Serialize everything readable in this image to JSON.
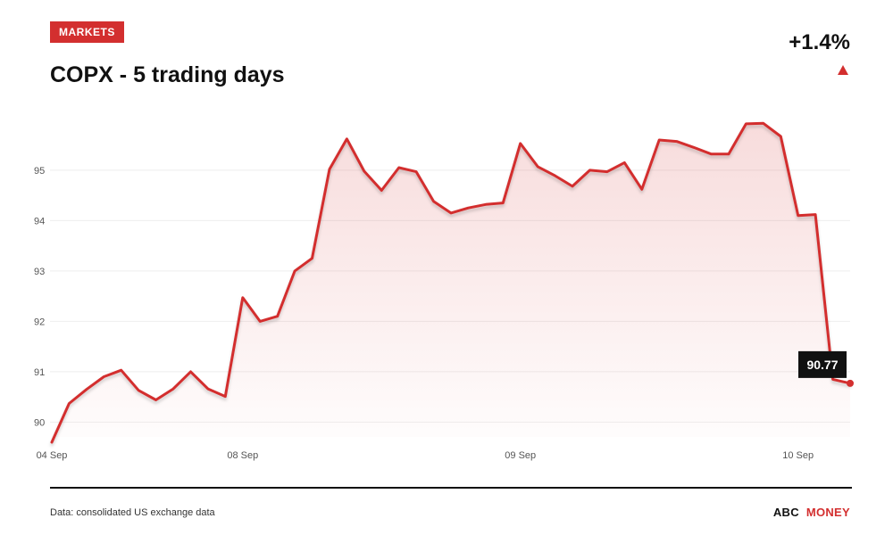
{
  "header": {
    "badge": "MARKETS",
    "title": "COPX - 5 trading days",
    "change": "+1.4%"
  },
  "colors": {
    "accent": "#d32f2f",
    "text": "#111111",
    "grid": "#eeeeee"
  },
  "icons": {
    "trend": "triangle-up-icon"
  },
  "chart_data": {
    "type": "area",
    "title": "COPX - 5 trading days",
    "xlabel": "",
    "ylabel": "",
    "ylim": [
      89.6,
      95.9
    ],
    "yticks": [
      90,
      91,
      92,
      93,
      94,
      95
    ],
    "xtick_labels": [
      {
        "label": "04 Sep",
        "index": 0
      },
      {
        "label": "08 Sep",
        "index": 11
      },
      {
        "label": "09 Sep",
        "index": 27
      },
      {
        "label": "10 Sep",
        "index": 43
      }
    ],
    "grid": true,
    "series": [
      {
        "values": [
          89.6,
          90.37,
          90.65,
          90.9,
          91.03,
          90.63,
          90.44,
          90.66,
          91.0,
          90.66,
          90.51,
          92.47,
          92.0,
          92.1,
          93.0,
          93.25,
          95.02,
          95.62,
          94.98,
          94.6,
          95.05,
          94.97,
          94.38,
          94.15,
          94.25,
          94.32,
          94.35,
          95.53,
          95.07,
          94.89,
          94.68,
          95.0,
          94.97,
          95.15,
          94.62,
          95.6,
          95.57,
          95.45,
          95.32,
          95.32,
          95.92,
          95.93,
          95.67,
          94.1,
          94.12,
          90.85,
          90.77
        ]
      }
    ],
    "last_value_label": "90.77"
  },
  "footer": {
    "source": "Data: consolidated US exchange data",
    "brand_part1": "ABC",
    "brand_part2": "MONEY"
  }
}
